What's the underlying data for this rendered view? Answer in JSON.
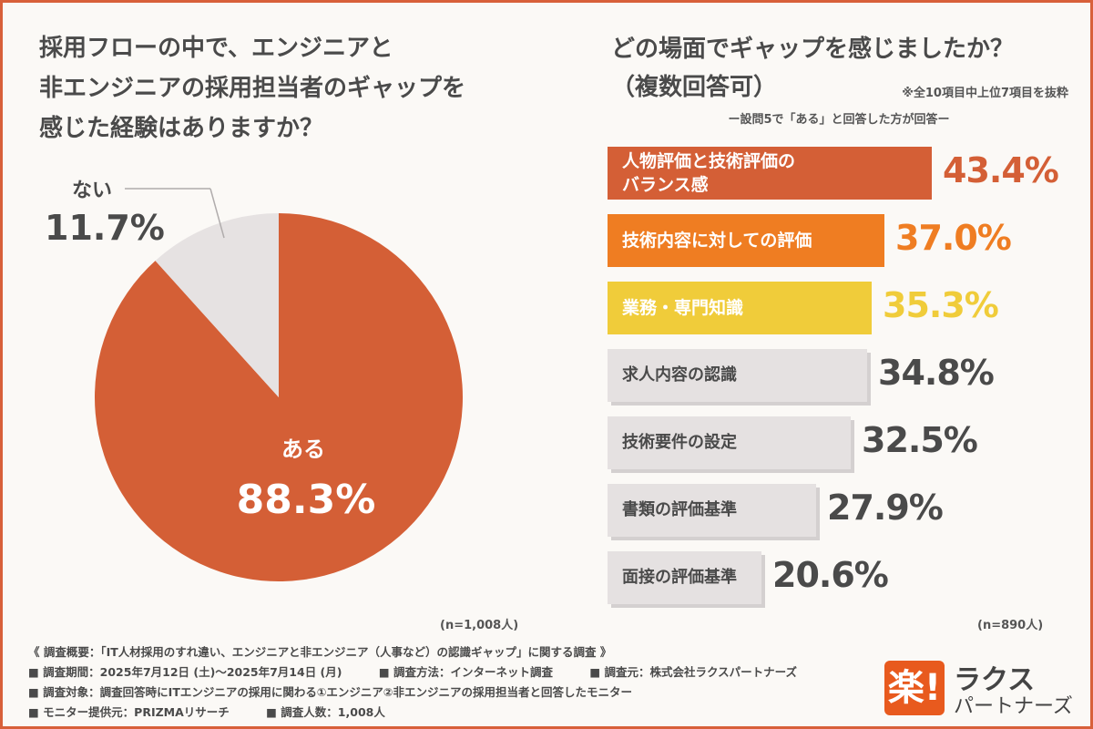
{
  "left_title_lines": [
    "採用フローの中で、エンジニアと",
    "非エンジニアの採用担当者のギャップを",
    "感じた経験はありますか？"
  ],
  "right_title_lines": [
    "どの場面でギャップを感じましたか？",
    "（複数回答可）"
  ],
  "right_note_top": "※全10項目中上位7項目を抜粋",
  "right_question_note": "ー設問5で「ある」と回答した方が回答ー",
  "n_left": "(n=1,008人)",
  "n_right": "(n=890人)",
  "footer": {
    "line1": "《 調査概要：「IT人材採用のすれ違い、エンジニアと非エンジニア（人事など）の認識ギャップ」に関する調査 》",
    "period": "■ 調査期間：2025年7月12日 (土)〜2025年7月14日 (月)",
    "method": "■ 調査方法：インターネット調査",
    "org": "■ 調査元：株式会社ラクスパートナーズ",
    "target": "■ 調査対象：調査回答時にITエンジニアの採用に関わる①エンジニア②非エンジニアの採用担当者と回答したモニター",
    "monitor": "■ モニター提供元：PRIZMAリサーチ",
    "count": "■ 調査人数：1,008人"
  },
  "logo": {
    "mark": "楽!",
    "name1": "ラクス",
    "name2": "パートナーズ"
  },
  "chart_data": [
    {
      "type": "pie",
      "title": "採用フローの中で、エンジニアと非エンジニアの採用担当者のギャップを感じた経験はありますか？",
      "slices": [
        {
          "label": "ある",
          "value": 88.3,
          "display": "88.3%",
          "color": "#d45f36"
        },
        {
          "label": "ない",
          "value": 11.7,
          "display": "11.7%",
          "color": "#e6e2e2"
        }
      ]
    },
    {
      "type": "bar",
      "orientation": "horizontal",
      "title": "どの場面でギャップを感じましたか？（複数回答可）",
      "categories": [
        "人物評価と技術評価の\nバランス感",
        "技術内容に対しての評価",
        "業務・専門知識",
        "求人内容の認識",
        "技術要件の設定",
        "書類の評価基準",
        "面接の評価基準"
      ],
      "values": [
        43.4,
        37.0,
        35.3,
        34.8,
        32.5,
        27.9,
        20.6
      ],
      "value_labels": [
        "43.4%",
        "37.0%",
        "35.3%",
        "34.8%",
        "32.5%",
        "27.9%",
        "20.6%"
      ],
      "colors": [
        "#d45f36",
        "#ef7d22",
        "#f0cc3a",
        "#e5e1e1",
        "#e5e1e1",
        "#e5e1e1",
        "#e5e1e1"
      ],
      "value_colors": [
        "#d45f36",
        "#ef7d22",
        "#f0cc3a",
        "#4a4a4a",
        "#4a4a4a",
        "#4a4a4a",
        "#4a4a4a"
      ]
    }
  ]
}
